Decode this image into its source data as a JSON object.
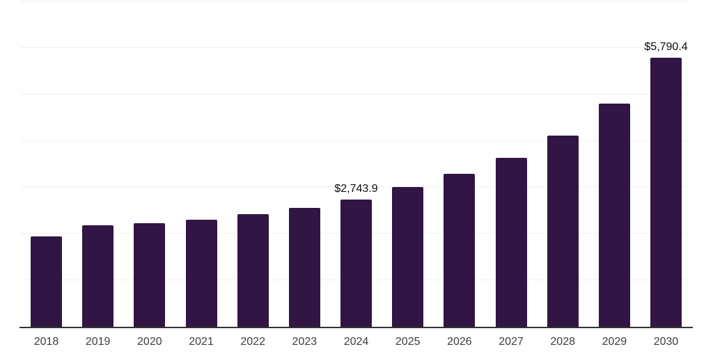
{
  "chart_data": {
    "type": "bar",
    "title": "",
    "xlabel": "",
    "ylabel": "",
    "categories": [
      "2018",
      "2019",
      "2020",
      "2021",
      "2022",
      "2023",
      "2024",
      "2025",
      "2026",
      "2027",
      "2028",
      "2029",
      "2030"
    ],
    "values": [
      1940,
      2180,
      2225,
      2310,
      2420,
      2565,
      2743.9,
      3000,
      3285,
      3640,
      4120,
      4805,
      5790.4
    ],
    "annotations": [
      {
        "category": "2024",
        "text": "$2,743.9"
      },
      {
        "category": "2030",
        "text": "$5,790.4"
      }
    ],
    "ylim": [
      0,
      7000
    ],
    "gridline_interval": 1000,
    "grid": "horizontal-only",
    "y_tick_labels_visible": false,
    "legend": "none",
    "colors": {
      "bar": "#301545",
      "gridline": "#efefef",
      "axis_line": "#333333",
      "tick_label": "#3d3d3d",
      "data_label": "#0d0d0d",
      "background": "#ffffff"
    }
  }
}
